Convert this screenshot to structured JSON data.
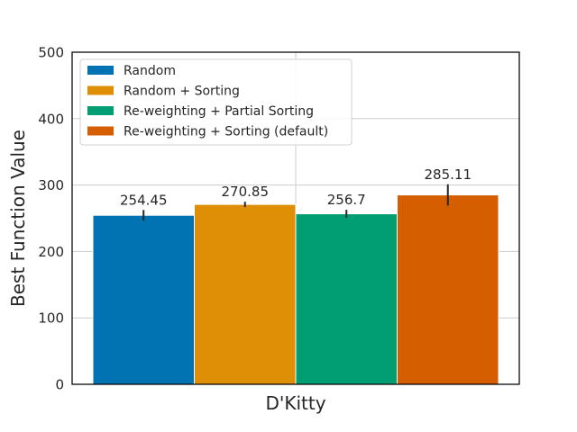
{
  "chart_data": {
    "type": "bar",
    "categories": [
      "D'Kitty"
    ],
    "xlabel": "D'Kitty",
    "ylabel": "Best Function Value",
    "ylim": [
      0,
      500
    ],
    "yticks": [
      "0",
      "100",
      "200",
      "300",
      "400",
      "500"
    ],
    "grid": true,
    "legend_position": "top-left",
    "series": [
      {
        "name": "Random",
        "values": [
          254.45
        ],
        "label": "254.45",
        "error": [
          8
        ],
        "color": "#0173b2"
      },
      {
        "name": "Random + Sorting",
        "values": [
          270.85
        ],
        "label": "270.85",
        "error": [
          4
        ],
        "color": "#de8f05"
      },
      {
        "name": "Re-weighting + Partial Sorting",
        "values": [
          256.7
        ],
        "label": "256.7",
        "error": [
          6
        ],
        "color": "#029e73"
      },
      {
        "name": "Re-weighting + Sorting (default)",
        "values": [
          285.11
        ],
        "label": "285.11",
        "error": [
          16
        ],
        "color": "#d55e00"
      }
    ]
  }
}
